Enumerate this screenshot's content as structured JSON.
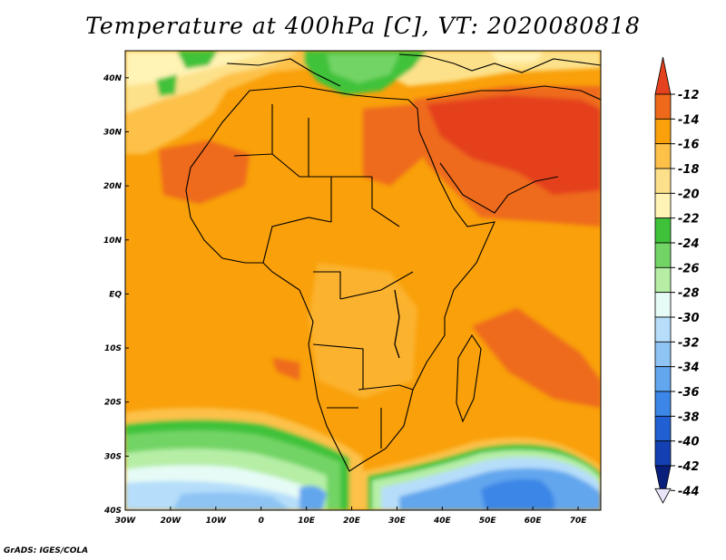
{
  "title": "Temperature at 400hPa [C], VT: 2020080818",
  "credit": "GrADS: IGES/COLA",
  "map": {
    "lon_range": [
      -30,
      75
    ],
    "lat_range": [
      -40,
      45
    ],
    "lon_ticks": [
      {
        "value": -30,
        "label": "30W"
      },
      {
        "value": -20,
        "label": "20W"
      },
      {
        "value": -10,
        "label": "10W"
      },
      {
        "value": 0,
        "label": "0"
      },
      {
        "value": 10,
        "label": "10E"
      },
      {
        "value": 20,
        "label": "20E"
      },
      {
        "value": 30,
        "label": "30E"
      },
      {
        "value": 40,
        "label": "40E"
      },
      {
        "value": 50,
        "label": "50E"
      },
      {
        "value": 60,
        "label": "60E"
      },
      {
        "value": 70,
        "label": "70E"
      }
    ],
    "lat_ticks": [
      {
        "value": 40,
        "label": "40N"
      },
      {
        "value": 30,
        "label": "30N"
      },
      {
        "value": 20,
        "label": "20N"
      },
      {
        "value": 10,
        "label": "10N"
      },
      {
        "value": 0,
        "label": "EQ"
      },
      {
        "value": -10,
        "label": "10S"
      },
      {
        "value": -20,
        "label": "20S"
      },
      {
        "value": -30,
        "label": "30S"
      },
      {
        "value": -40,
        "label": "40S"
      }
    ]
  },
  "colorbar": {
    "labels": [
      "-12",
      "-14",
      "-16",
      "-18",
      "-20",
      "-22",
      "-24",
      "-26",
      "-28",
      "-30",
      "-32",
      "-34",
      "-36",
      "-38",
      "-40",
      "-42",
      "-44"
    ],
    "colors": [
      "#e4411e",
      "#ee6a1a",
      "#f9a00a",
      "#fdc14a",
      "#fde18a",
      "#fff3b5",
      "#3fc23a",
      "#72d465",
      "#b6eea6",
      "#e6fbf6",
      "#b6defa",
      "#8ec4f4",
      "#62a6ee",
      "#3b86e6",
      "#2060d2",
      "#1340b2",
      "#0a1e7c"
    ]
  }
}
